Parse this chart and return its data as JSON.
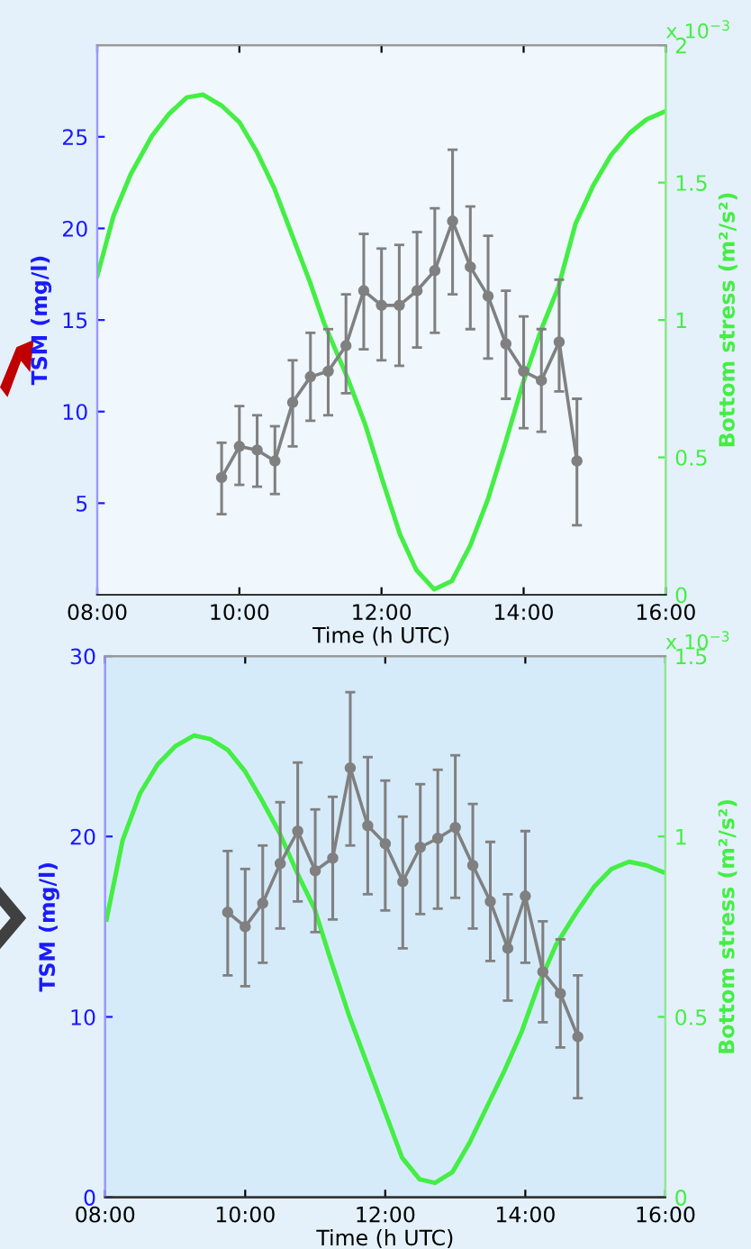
{
  "chart_data": [
    {
      "type": "line",
      "xlabel": "Time (h UTC)",
      "ylabel": "TSM (mg/l)",
      "y2label": "Bottom stress (m²/s²)",
      "annotations": [
        "x 10$^{−3}$"
      ],
      "x": [
        9.75,
        10,
        10.25,
        10.5,
        10.75,
        11,
        11.25,
        11.5,
        11.75,
        12,
        12.25,
        12.5,
        12.75,
        13,
        13.25,
        13.5,
        13.75,
        14,
        14.25,
        14.5,
        14.75
      ],
      "series": [
        {
          "color": "#808080",
          "marker": "circle",
          "values": [
            6.4,
            8.1,
            7.9,
            7.3,
            10.5,
            11.9,
            12.2,
            13.6,
            16.6,
            15.8,
            15.8,
            16.6,
            17.7,
            20.4,
            17.9,
            16.3,
            13.7,
            12.2,
            11.7,
            13.8,
            7.3
          ],
          "errors": [
            [
              4.4,
              8.3
            ],
            [
              6.0,
              10.3
            ],
            [
              5.9,
              9.8
            ],
            [
              5.5,
              9.2
            ],
            [
              8.1,
              12.8
            ],
            [
              9.5,
              14.3
            ],
            [
              9.8,
              14.5
            ],
            [
              11.0,
              16.4
            ],
            [
              13.4,
              19.7
            ],
            [
              12.8,
              18.9
            ],
            [
              12.5,
              19.1
            ],
            [
              13.5,
              19.8
            ],
            [
              14.3,
              21.1
            ],
            [
              16.4,
              24.3
            ],
            [
              14.5,
              21.2
            ],
            [
              12.9,
              19.6
            ],
            [
              10.7,
              16.6
            ],
            [
              9.1,
              15.2
            ],
            [
              8.9,
              14.5
            ],
            [
              11.1,
              17.2
            ],
            [
              3.8,
              10.7
            ]
          ]
        },
        {
          "axis": "y2",
          "color": "#44ee44",
          "x": [
            8,
            8.23,
            8.47,
            8.77,
            9.01,
            9.26,
            9.49,
            9.75,
            10,
            10.25,
            10.49,
            10.74,
            10.99,
            11.19,
            11.52,
            11.77,
            12.01,
            12.26,
            12.49,
            12.74,
            12.99,
            13.25,
            13.5,
            13.74,
            13.99,
            14.24,
            14.49,
            14.73,
            14.98,
            15.23,
            15.49,
            15.73,
            16
          ],
          "values": [
            1.16,
            1.38,
            1.53,
            1.67,
            1.75,
            1.81,
            1.82,
            1.78,
            1.72,
            1.61,
            1.48,
            1.31,
            1.14,
            0.99,
            0.79,
            0.62,
            0.42,
            0.22,
            0.09,
            0.02,
            0.05,
            0.18,
            0.35,
            0.55,
            0.77,
            0.96,
            1.12,
            1.35,
            1.49,
            1.6,
            1.68,
            1.73,
            1.76
          ]
        }
      ],
      "xlim": [
        8,
        16
      ],
      "xticks": [
        {
          "value": 8,
          "label": "08:00"
        },
        {
          "value": 10,
          "label": "10:00"
        },
        {
          "value": 12,
          "label": "12:00"
        },
        {
          "value": 14,
          "label": "14:00"
        },
        {
          "value": 16,
          "label": "16:00"
        }
      ],
      "ylim": [
        0,
        30
      ],
      "yticks": [
        5,
        10,
        15,
        20,
        25
      ],
      "y2lim": [
        0,
        2
      ],
      "y2ticks": [
        0,
        0.5,
        1,
        1.5,
        2
      ],
      "grid": false,
      "legend": false
    },
    {
      "type": "line",
      "xlabel": "Time (h UTC)",
      "ylabel": "TSM (mg/l)",
      "y2label": "Bottom stress (m²/s²)",
      "annotations": [
        "x 10$^{−3}$"
      ],
      "x": [
        9.75,
        10,
        10.25,
        10.5,
        10.75,
        11,
        11.25,
        11.5,
        11.75,
        12,
        12.25,
        12.5,
        12.75,
        13,
        13.25,
        13.5,
        13.75,
        14,
        14.25,
        14.5,
        14.75
      ],
      "series": [
        {
          "color": "#808080",
          "marker": "circle",
          "values": [
            15.8,
            15.0,
            16.3,
            18.5,
            20.3,
            18.1,
            18.8,
            23.8,
            20.6,
            19.6,
            17.5,
            19.4,
            19.9,
            20.5,
            18.4,
            16.4,
            13.8,
            16.7,
            12.5,
            11.3,
            8.9
          ],
          "errors": [
            [
              12.3,
              19.2
            ],
            [
              11.7,
              18.2
            ],
            [
              13.0,
              19.5
            ],
            [
              14.9,
              21.9
            ],
            [
              16.4,
              24.1
            ],
            [
              14.7,
              21.5
            ],
            [
              15.4,
              22.2
            ],
            [
              19.5,
              28.0
            ],
            [
              16.8,
              24.4
            ],
            [
              15.9,
              23.1
            ],
            [
              13.8,
              21.1
            ],
            [
              15.7,
              22.9
            ],
            [
              16.0,
              23.7
            ],
            [
              16.6,
              24.5
            ],
            [
              14.9,
              21.8
            ],
            [
              13.1,
              19.7
            ],
            [
              10.9,
              16.8
            ],
            [
              13.0,
              20.3
            ],
            [
              9.7,
              15.3
            ],
            [
              8.3,
              14.3
            ],
            [
              5.5,
              12.3
            ]
          ]
        },
        {
          "axis": "y2",
          "color": "#44ee44",
          "x": [
            8.02,
            8.25,
            8.5,
            8.75,
            9,
            9.27,
            9.5,
            9.75,
            10,
            10.24,
            10.49,
            10.74,
            10.99,
            11.2,
            11.49,
            11.74,
            11.99,
            12.24,
            12.49,
            12.71,
            12.96,
            13.2,
            13.45,
            13.7,
            13.95,
            14.19,
            14.44,
            14.73,
            14.98,
            15.23,
            15.48,
            15.73,
            15.98
          ],
          "values": [
            0.77,
            0.99,
            1.12,
            1.2,
            1.25,
            1.28,
            1.27,
            1.24,
            1.18,
            1.1,
            1.01,
            0.9,
            0.8,
            0.67,
            0.5,
            0.37,
            0.24,
            0.11,
            0.05,
            0.04,
            0.07,
            0.15,
            0.25,
            0.35,
            0.46,
            0.59,
            0.7,
            0.79,
            0.86,
            0.91,
            0.93,
            0.92,
            0.9
          ]
        }
      ],
      "xlim": [
        8,
        16
      ],
      "xticks": [
        {
          "value": 8,
          "label": "08:00"
        },
        {
          "value": 10,
          "label": "10:00"
        },
        {
          "value": 12,
          "label": "12:00"
        },
        {
          "value": 14,
          "label": "14:00"
        },
        {
          "value": 16,
          "label": "16:00"
        }
      ],
      "ylim": [
        0,
        30
      ],
      "yticks": [
        0,
        10,
        20,
        30
      ],
      "y2lim": [
        0,
        1.5
      ],
      "y2ticks": [
        0,
        0.5,
        1,
        1.5
      ],
      "grid": false,
      "legend": false
    }
  ]
}
